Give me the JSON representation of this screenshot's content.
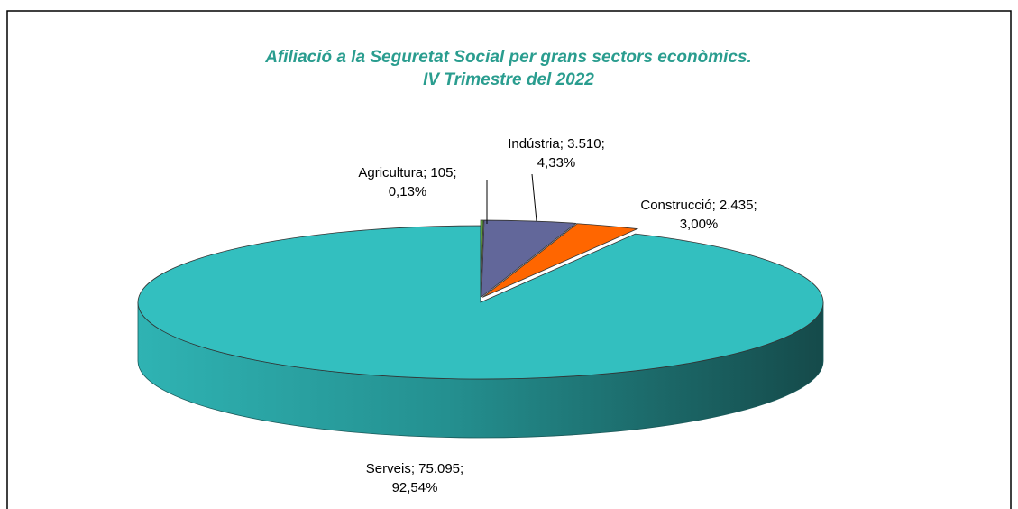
{
  "chart_data": {
    "type": "pie3d",
    "title": [
      "Afiliació a la Seguretat Social per grans sectors econòmics.",
      "IV Trimestre del 2022"
    ],
    "values": [
      105,
      3510,
      2435,
      75095
    ],
    "labels": [
      [
        "Agricultura; 105;",
        "0,13%"
      ],
      [
        "Indústria; 3.510;",
        "4,33%"
      ],
      [
        "Construcció; 2.435;",
        "3,00%"
      ],
      [
        "Serveis; 75.095;",
        "92,54%"
      ]
    ],
    "colors": [
      "#5a9a3a",
      "#62679a",
      "#ff6600",
      "#33bfbf"
    ]
  }
}
